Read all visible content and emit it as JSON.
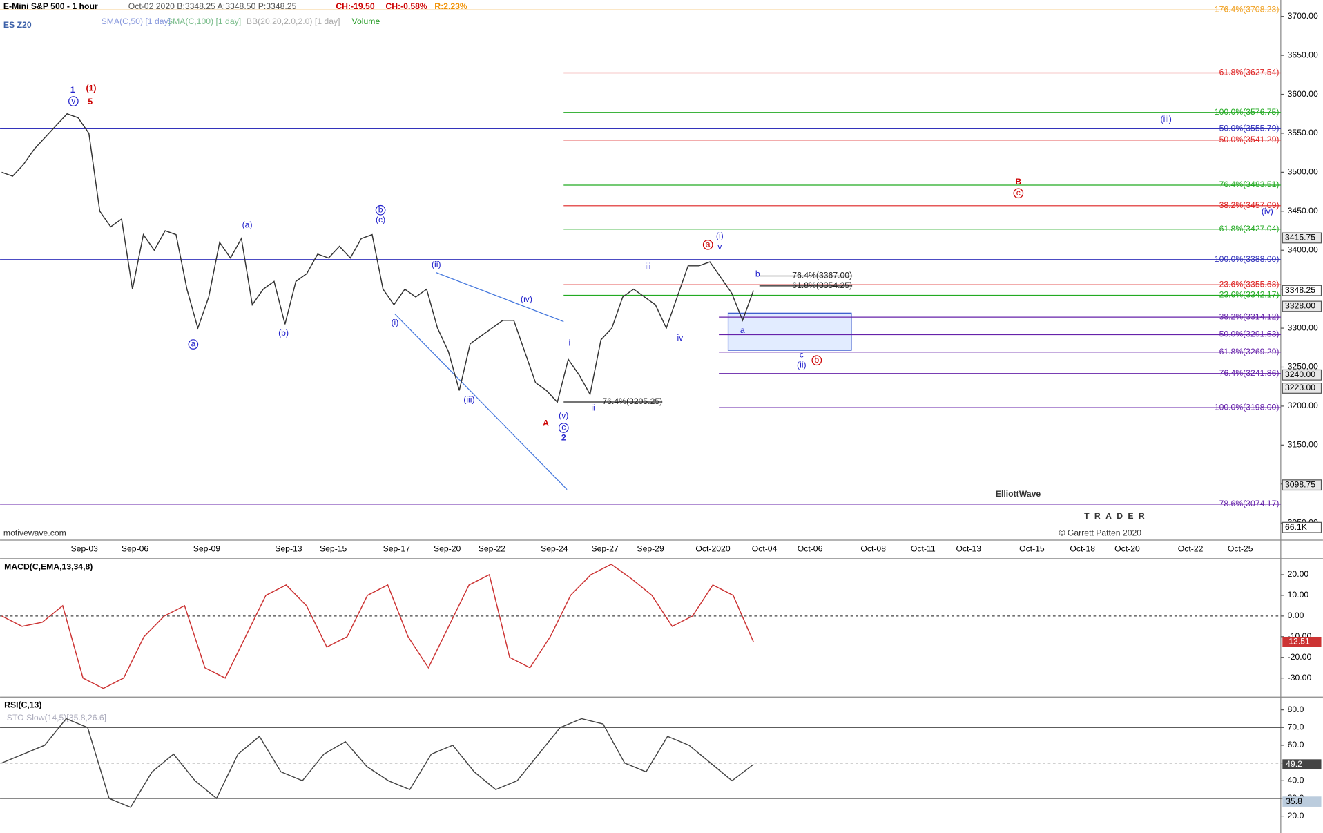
{
  "header": {
    "title": "E-Mini S&P 500 - 1 hour",
    "quote": "Oct-02 2020  B:3348.25  A:3348.50  P:3348.25",
    "change": "CH:-19.50",
    "change_pct": "CH:-0.58%",
    "range": "R:2.23%",
    "symbol": "ES Z20",
    "studies": [
      "SMA(C,50) [1 day]",
      "SMA(C,100) [1 day]",
      "BB(20,20,2.0,2.0) [1 day]",
      "Volume"
    ],
    "watermark": "motivewave.com"
  },
  "logo": {
    "name": "ElliottWave",
    "sub": "TRADER",
    "copyright": "© Garrett Patten 2020"
  },
  "chart_data": [
    {
      "type": "line",
      "name": "price",
      "color": "#333333",
      "values": [
        3500,
        3495,
        3510,
        3530,
        3545,
        3560,
        3575,
        3570,
        3550,
        3450,
        3430,
        3440,
        3350,
        3420,
        3400,
        3425,
        3420,
        3350,
        3300,
        3340,
        3410,
        3390,
        3415,
        3330,
        3350,
        3360,
        3305,
        3360,
        3370,
        3395,
        3390,
        3405,
        3390,
        3415,
        3420,
        3350,
        3330,
        3350,
        3340,
        3350,
        3300,
        3270,
        3220,
        3280,
        3290,
        3300,
        3310,
        3310,
        3270,
        3230,
        3220,
        3205,
        3260,
        3240,
        3215,
        3285,
        3300,
        3340,
        3350,
        3340,
        3330,
        3300,
        3340,
        3380,
        3380,
        3385,
        3365,
        3345,
        3310,
        3348.25
      ],
      "ylim": [
        3028,
        3721
      ],
      "yticks": [
        {
          "value": 3050,
          "label": "3050.00"
        },
        {
          "value": 3100,
          "label": "3100.00"
        },
        {
          "value": 3150,
          "label": "3150.00"
        },
        {
          "value": 3200,
          "label": "3200.00"
        },
        {
          "value": 3250,
          "label": "3250.00"
        },
        {
          "value": 3300,
          "label": "3300.00"
        },
        {
          "value": 3350,
          "label": "3350.00"
        },
        {
          "value": 3400,
          "label": "3400.00"
        },
        {
          "value": 3450,
          "label": "3450.00"
        },
        {
          "value": 3500,
          "label": "3500.00"
        },
        {
          "value": 3550,
          "label": "3550.00"
        },
        {
          "value": 3600,
          "label": "3600.00"
        },
        {
          "value": 3650,
          "label": "3650.00"
        },
        {
          "value": 3700,
          "label": "3700.00"
        }
      ],
      "xticks": [
        "Sep-03",
        "Sep-06",
        "Sep-09",
        "Sep-13",
        "Sep-15",
        "Sep-17",
        "Sep-20",
        "Sep-22",
        "Sep-24",
        "Sep-27",
        "Sep-29",
        "Oct-2020",
        "Oct-04",
        "Oct-06",
        "Oct-08",
        "Oct-11",
        "Oct-13",
        "Oct-15",
        "Oct-18",
        "Oct-20",
        "Oct-22",
        "Oct-25"
      ],
      "price_tags": [
        {
          "value": 3415.75,
          "label": "3415.75"
        },
        {
          "value": 3348.25,
          "label": "3348.25"
        },
        {
          "value": 3328,
          "label": "3328.00"
        },
        {
          "value": 3240,
          "label": "3240.00"
        },
        {
          "value": 3223,
          "label": "3223.00"
        },
        {
          "value": 3098.75,
          "label": "3098.75"
        }
      ],
      "volume_tag": "66.1K",
      "levels": [
        {
          "label": "176.4%(3708.23)",
          "value": 3708.23,
          "color": "#f0a020",
          "span": "full"
        },
        {
          "label": "61.8%(3627.54)",
          "value": 3627.54,
          "color": "#dd2222",
          "span": "right"
        },
        {
          "label": "100.0%(3576.75)",
          "value": 3576.75,
          "color": "#22aa22",
          "span": "right"
        },
        {
          "label": "50.0%(3555.79)",
          "value": 3555.79,
          "color": "#3333bb",
          "span": "full"
        },
        {
          "label": "50.0%(3541.29)",
          "value": 3541.29,
          "color": "#dd2222",
          "span": "right"
        },
        {
          "label": "76.4%(3483.51)",
          "value": 3483.51,
          "color": "#22aa22",
          "span": "right"
        },
        {
          "label": "38.2%(3457.09)",
          "value": 3457.09,
          "color": "#dd2222",
          "span": "right"
        },
        {
          "label": "61.8%(3427.04)",
          "value": 3427.04,
          "color": "#22aa22",
          "span": "right"
        },
        {
          "label": "100.0%(3388.00)",
          "value": 3388,
          "color": "#3333bb",
          "span": "full"
        },
        {
          "label": "23.6%(3355.68)",
          "value": 3355.68,
          "color": "#dd2222",
          "span": "right"
        },
        {
          "label": "23.6%(3342.17)",
          "value": 3342.17,
          "color": "#22aa22",
          "span": "right"
        },
        {
          "label": "38.2%(3314.12)",
          "value": 3314.12,
          "color": "#6622aa",
          "span": "late"
        },
        {
          "label": "50.0%(3291.63)",
          "value": 3291.63,
          "color": "#6622aa",
          "span": "late"
        },
        {
          "label": "61.8%(3269.29)",
          "value": 3269.29,
          "color": "#6622aa",
          "span": "late"
        },
        {
          "label": "76.4%(3241.86)",
          "value": 3241.86,
          "color": "#6622aa",
          "span": "late"
        },
        {
          "label": "100.0%(3198.00)",
          "value": 3198,
          "color": "#6622aa",
          "span": "late"
        },
        {
          "label": "78.6%(3074.17)",
          "value": 3074.17,
          "color": "#6622aa",
          "span": "full"
        }
      ],
      "mid_levels": [
        {
          "label": "76.4%(3367.00)",
          "value": 3367
        },
        {
          "label": "61.8%(3354.25)",
          "value": 3354.25
        },
        {
          "label": "76.4%(3205.25)",
          "value": 3205.25
        }
      ],
      "annotations": [
        {
          "text": "1",
          "color": "#2222cc",
          "bold": true
        },
        {
          "text": "(1)",
          "color": "#cc0000",
          "bold": true
        },
        {
          "text": "5",
          "color": "#cc0000",
          "bold": true
        },
        {
          "text": "v",
          "color": "#2222cc",
          "circled": true
        },
        {
          "text": "(a)",
          "color": "#2222cc"
        },
        {
          "text": "a",
          "color": "#2222cc",
          "circled": true
        },
        {
          "text": "(b)",
          "color": "#2222cc"
        },
        {
          "text": "b",
          "color": "#2222cc",
          "circled": true
        },
        {
          "text": "(c)",
          "color": "#2222cc"
        },
        {
          "text": "(i)",
          "color": "#2222cc"
        },
        {
          "text": "(ii)",
          "color": "#2222cc"
        },
        {
          "text": "(iii)",
          "color": "#2222cc"
        },
        {
          "text": "(iv)",
          "color": "#2222cc"
        },
        {
          "text": "(v)",
          "color": "#2222cc"
        },
        {
          "text": "c",
          "color": "#2222cc",
          "circled": true
        },
        {
          "text": "2",
          "color": "#2222cc",
          "bold": true
        },
        {
          "text": "A",
          "color": "#cc0000",
          "bold": true
        },
        {
          "text": "i",
          "color": "#2222cc"
        },
        {
          "text": "ii",
          "color": "#2222cc"
        },
        {
          "text": "iii",
          "color": "#2222cc"
        },
        {
          "text": "iv",
          "color": "#2222cc"
        },
        {
          "text": "a",
          "color": "#cc0000",
          "circled": true
        },
        {
          "text": "(i)",
          "color": "#2222cc"
        },
        {
          "text": "v",
          "color": "#2222cc"
        },
        {
          "text": "b",
          "color": "#2222cc"
        },
        {
          "text": "a",
          "color": "#2222cc"
        },
        {
          "text": "c",
          "color": "#2222cc"
        },
        {
          "text": "(ii)",
          "color": "#2222cc"
        },
        {
          "text": "b",
          "color": "#cc0000",
          "circled": true
        },
        {
          "text": "B",
          "color": "#cc0000",
          "bold": true
        },
        {
          "text": "c",
          "color": "#cc0000",
          "circled": true
        },
        {
          "text": "(iii)",
          "color": "#2222cc"
        },
        {
          "text": "(iv)",
          "color": "#2222cc"
        }
      ]
    },
    {
      "type": "line",
      "title": "MACD(C,EMA,13,34,8)",
      "color": "#cc3333",
      "values": [
        0,
        -5,
        -3,
        5,
        -30,
        -35,
        -30,
        -10,
        0,
        5,
        -25,
        -30,
        -10,
        10,
        15,
        5,
        -15,
        -10,
        10,
        15,
        -10,
        -25,
        -5,
        15,
        20,
        -20,
        -25,
        -10,
        10,
        20,
        25,
        18,
        10,
        -5,
        0,
        15,
        10,
        -12.51
      ],
      "value_labels": [
        null,
        null,
        null,
        null,
        null,
        null,
        null,
        null,
        null,
        null,
        null,
        null,
        null,
        null,
        null,
        null,
        null,
        null,
        null,
        null,
        null,
        null,
        null,
        null,
        null,
        null,
        null,
        null,
        null,
        null,
        null,
        null,
        null,
        null,
        null,
        null,
        null,
        "-12.51"
      ],
      "ylim": [
        -38.8,
        27.3
      ],
      "yticks": [
        {
          "value": -30,
          "label": "-30.00"
        },
        {
          "value": -20,
          "label": "-20.00"
        },
        {
          "value": -10,
          "label": "-10.00"
        },
        {
          "value": 0,
          "label": "0.00"
        },
        {
          "value": 10,
          "label": "10.00"
        },
        {
          "value": 20,
          "label": "20.00"
        }
      ]
    },
    {
      "type": "line",
      "title": "RSI(C,13)",
      "subtitle": "STO Slow(14,5)[35.8,26.6]",
      "color": "#444444",
      "values": [
        50,
        55,
        60,
        75,
        70,
        30,
        25,
        45,
        55,
        40,
        30,
        55,
        65,
        45,
        40,
        55,
        62,
        48,
        40,
        35,
        55,
        60,
        45,
        35,
        40,
        55,
        70,
        75,
        72,
        50,
        45,
        65,
        60,
        50,
        40,
        49.2
      ],
      "value_labels": [
        null,
        null,
        null,
        null,
        null,
        null,
        null,
        null,
        null,
        null,
        null,
        null,
        null,
        null,
        null,
        null,
        null,
        null,
        null,
        null,
        null,
        null,
        null,
        null,
        null,
        null,
        null,
        null,
        null,
        null,
        null,
        null,
        null,
        null,
        null,
        "49.2"
      ],
      "stoch_tag": "35.8",
      "ylim": [
        10.5,
        86.2
      ],
      "yticks": [
        {
          "value": 20,
          "label": "20.0"
        },
        {
          "value": 30,
          "label": "30.0"
        },
        {
          "value": 40,
          "label": "40.0"
        },
        {
          "value": 50,
          "label": "50.0"
        },
        {
          "value": 60,
          "label": "60.0"
        },
        {
          "value": 70,
          "label": "70.0"
        },
        {
          "value": 80,
          "label": "80.0"
        }
      ]
    }
  ]
}
